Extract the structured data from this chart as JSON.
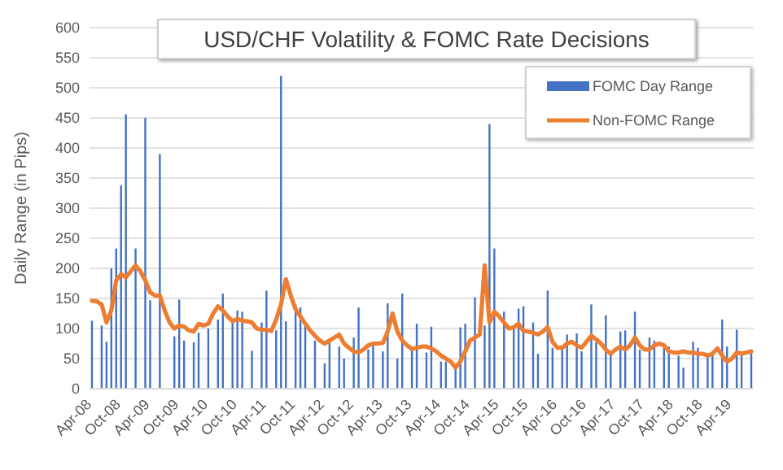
{
  "chart_data": {
    "type": "bar",
    "title": "USD/CHF Volatility & FOMC Rate Decisions",
    "ylabel": "Daily Range (in Pips)",
    "categories": [
      "Apr-08",
      null,
      null,
      null,
      null,
      null,
      "Oct-08",
      null,
      null,
      null,
      null,
      null,
      "Apr-09",
      null,
      null,
      null,
      null,
      null,
      "Oct-09",
      null,
      null,
      null,
      null,
      null,
      "Apr-10",
      null,
      null,
      null,
      null,
      null,
      "Oct-10",
      null,
      null,
      null,
      null,
      null,
      "Apr-11",
      null,
      null,
      null,
      null,
      null,
      "Oct-11",
      null,
      null,
      null,
      null,
      null,
      "Apr-12",
      null,
      null,
      null,
      null,
      null,
      "Oct-12",
      null,
      null,
      null,
      null,
      null,
      "Apr-13",
      null,
      null,
      null,
      null,
      null,
      "Oct-13",
      null,
      null,
      null,
      null,
      null,
      "Apr-14",
      null,
      null,
      null,
      null,
      null,
      "Oct-14",
      null,
      null,
      null,
      null,
      null,
      "Apr-15",
      null,
      null,
      null,
      null,
      null,
      "Oct-15",
      null,
      null,
      null,
      null,
      null,
      "Apr-16",
      null,
      null,
      null,
      null,
      null,
      "Oct-16",
      null,
      null,
      null,
      null,
      null,
      "Apr-17",
      null,
      null,
      null,
      null,
      null,
      "Oct-17",
      null,
      null,
      null,
      null,
      null,
      "Apr-18",
      null,
      null,
      null,
      null,
      null,
      "Oct-18",
      null,
      null,
      null,
      null,
      null,
      "Apr-19",
      null,
      null,
      null,
      null
    ],
    "series": [
      {
        "name": "FOMC Day Range",
        "color": "#4472c4",
        "values": [
          113,
          null,
          105,
          78,
          200,
          233,
          338,
          456,
          null,
          233,
          null,
          450,
          147,
          null,
          390,
          null,
          null,
          87,
          148,
          80,
          null,
          77,
          93,
          null,
          100,
          null,
          115,
          158,
          null,
          110,
          130,
          128,
          null,
          63,
          null,
          110,
          163,
          null,
          97,
          520,
          112,
          null,
          140,
          135,
          108,
          null,
          80,
          null,
          42,
          80,
          null,
          70,
          50,
          null,
          85,
          135,
          null,
          65,
          73,
          null,
          62,
          142,
          null,
          50,
          158,
          null,
          65,
          108,
          null,
          60,
          103,
          null,
          45,
          45,
          null,
          35,
          102,
          108,
          null,
          152,
          null,
          105,
          440,
          233,
          null,
          128,
          null,
          105,
          133,
          137,
          null,
          110,
          58,
          null,
          163,
          68,
          null,
          70,
          90,
          null,
          92,
          62,
          null,
          140,
          77,
          null,
          122,
          60,
          null,
          95,
          97,
          null,
          128,
          65,
          null,
          85,
          80,
          null,
          73,
          70,
          null,
          55,
          35,
          null,
          78,
          68,
          null,
          57,
          60,
          null,
          115,
          70,
          null,
          98,
          62,
          null,
          65
        ]
      },
      {
        "name": "Non-FOMC Range",
        "type": "line",
        "color": "#ed7d31",
        "values": [
          146,
          145,
          140,
          110,
          130,
          180,
          190,
          185,
          195,
          205,
          195,
          180,
          160,
          155,
          155,
          130,
          110,
          100,
          105,
          103,
          97,
          95,
          108,
          105,
          108,
          125,
          137,
          130,
          120,
          112,
          116,
          113,
          112,
          110,
          100,
          98,
          98,
          96,
          115,
          140,
          182,
          155,
          132,
          120,
          108,
          97,
          88,
          80,
          75,
          80,
          85,
          90,
          75,
          68,
          62,
          60,
          65,
          72,
          75,
          75,
          76,
          95,
          125,
          95,
          80,
          72,
          66,
          68,
          70,
          70,
          67,
          62,
          55,
          50,
          45,
          35,
          45,
          62,
          80,
          85,
          90,
          205,
          110,
          128,
          120,
          110,
          100,
          102,
          108,
          96,
          95,
          93,
          90,
          95,
          102,
          78,
          68,
          68,
          75,
          78,
          72,
          68,
          78,
          88,
          82,
          75,
          65,
          58,
          65,
          70,
          65,
          72,
          85,
          72,
          65,
          65,
          72,
          75,
          72,
          62,
          60,
          60,
          62,
          60,
          60,
          58,
          58,
          55,
          58,
          67,
          55,
          45,
          50,
          60,
          58,
          60,
          62
        ]
      }
    ],
    "ylim": [
      0,
      600
    ],
    "yticks": [
      0,
      50,
      100,
      150,
      200,
      250,
      300,
      350,
      400,
      450,
      500,
      550,
      600
    ],
    "grid": "y",
    "legend": "top right"
  }
}
